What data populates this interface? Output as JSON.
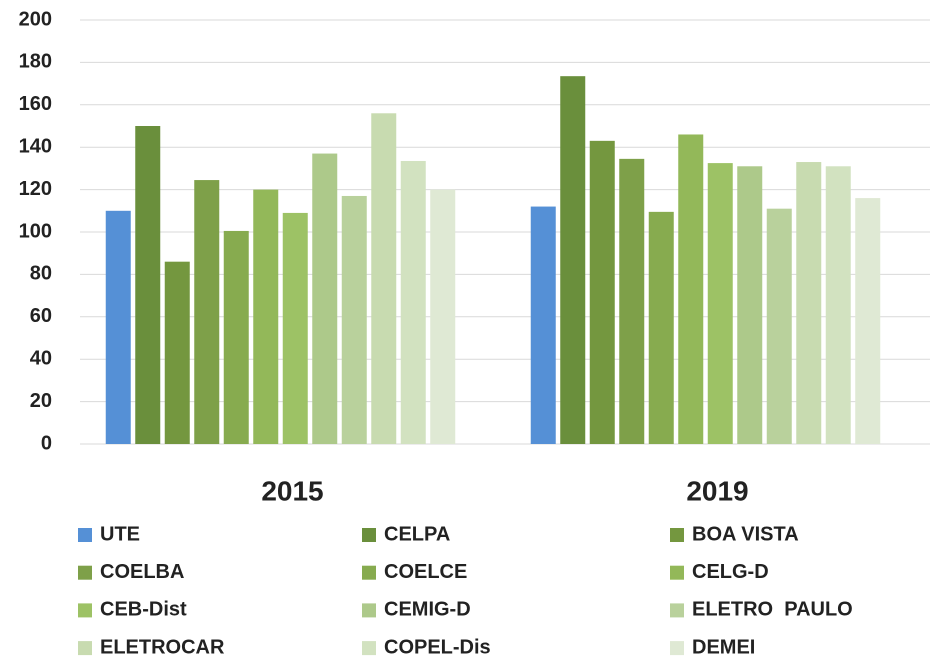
{
  "chart_data": {
    "type": "bar",
    "categories": [
      "2015",
      "2019"
    ],
    "series": [
      {
        "name": "UTE",
        "color": "#5590d6",
        "values": [
          110,
          112
        ]
      },
      {
        "name": "CELPA",
        "color": "#6a8f3c",
        "values": [
          150,
          173.5
        ]
      },
      {
        "name": "BOA VISTA",
        "color": "#74973f",
        "values": [
          86,
          143
        ]
      },
      {
        "name": "COELBA",
        "color": "#7ea049",
        "values": [
          124.5,
          134.5
        ]
      },
      {
        "name": "COELCE",
        "color": "#87ab4f",
        "values": [
          100.5,
          109.5
        ]
      },
      {
        "name": "CELG-D",
        "color": "#93b859",
        "values": [
          120,
          146
        ]
      },
      {
        "name": "CEB-Dist",
        "color": "#9dc265",
        "values": [
          109,
          132.5
        ]
      },
      {
        "name": "CEMIG-D",
        "color": "#adc98a",
        "values": [
          137,
          131
        ]
      },
      {
        "name": "ELETRO  PAULO",
        "color": "#b9d19c",
        "values": [
          117,
          111
        ]
      },
      {
        "name": "ELETROCAR",
        "color": "#c8dbb0",
        "values": [
          156,
          133
        ]
      },
      {
        "name": "COPEL-Dis",
        "color": "#d2e2c0",
        "values": [
          133.5,
          131
        ]
      },
      {
        "name": "DEMEI",
        "color": "#dfe9d4",
        "values": [
          120,
          116
        ]
      }
    ],
    "ylim": [
      0,
      200
    ],
    "yticks": [
      0,
      20,
      40,
      60,
      80,
      100,
      120,
      140,
      160,
      180,
      200
    ],
    "grid": true,
    "legend": "bottom"
  }
}
